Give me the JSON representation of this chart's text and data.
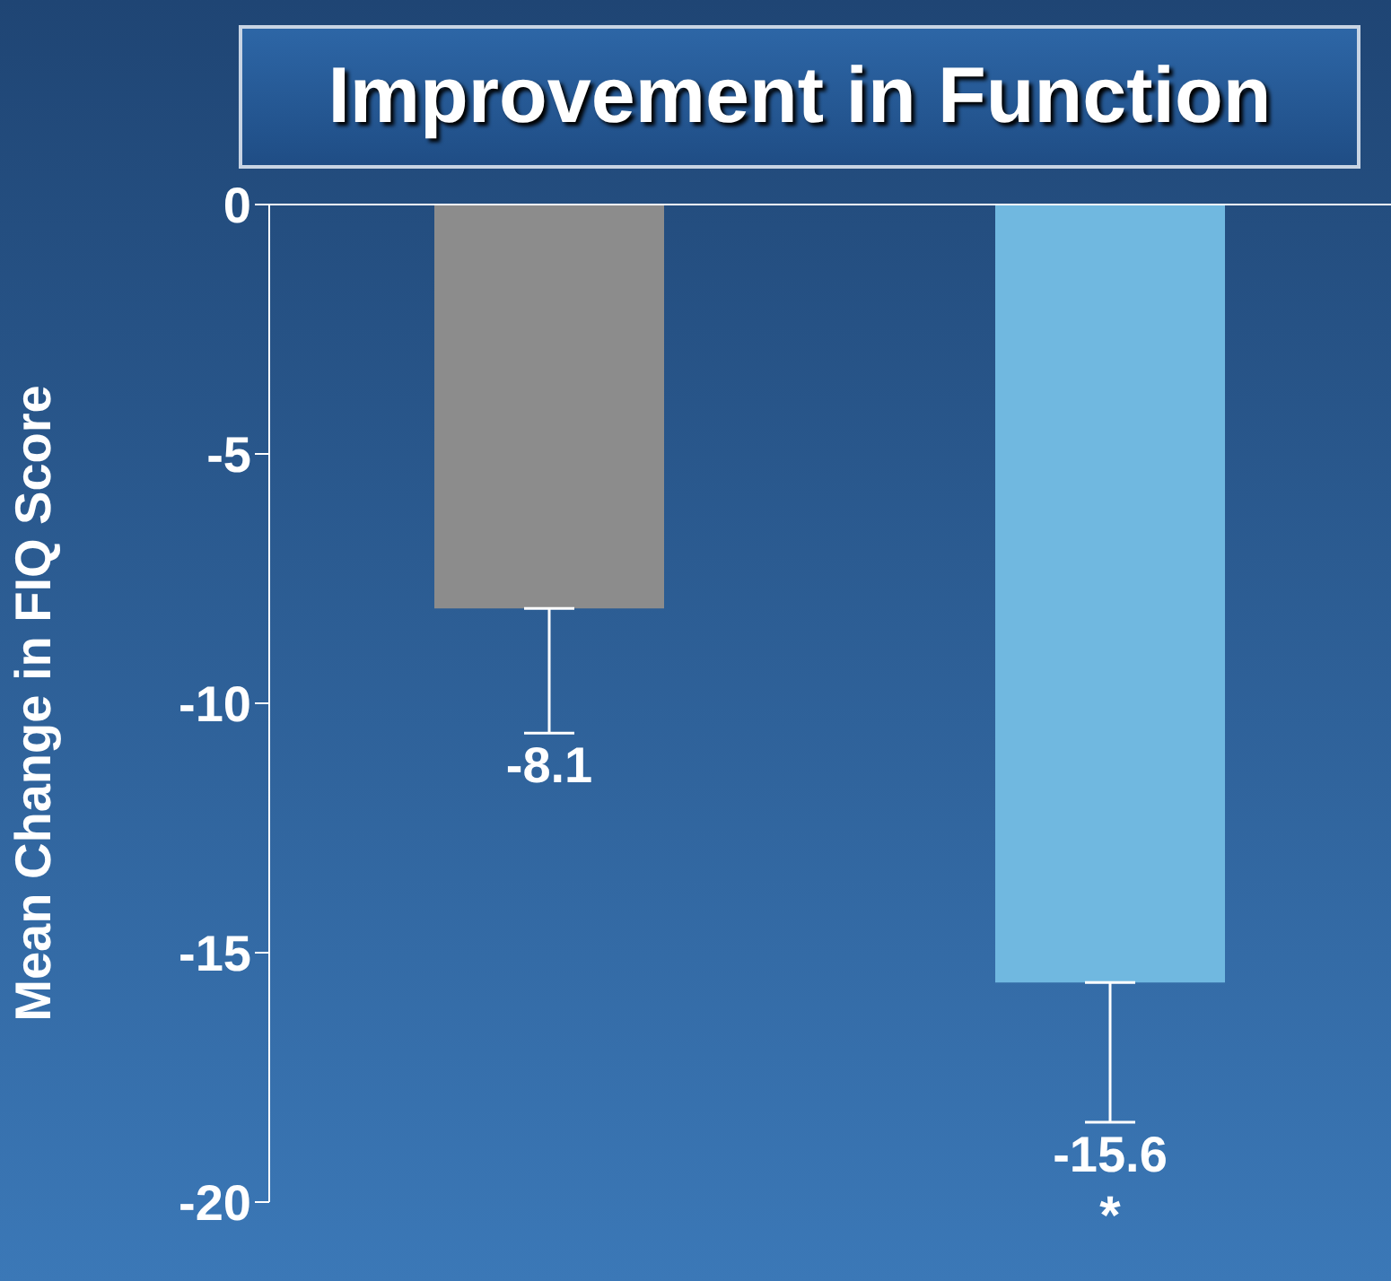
{
  "chart_data": {
    "type": "bar",
    "title": "Improvement in Function",
    "ylabel": "Mean Change in FIQ Score",
    "categories": [
      null,
      null
    ],
    "values": [
      -8.1,
      -15.6
    ],
    "colors": [
      "#8c8c8c",
      "#70b8e0"
    ],
    "errors": [
      [
        -10.6,
        -8.1
      ],
      [
        -18.4,
        -15.6
      ]
    ],
    "data_labels": true,
    "annotations": [
      {
        "text": "*"
      }
    ],
    "ylim": [
      -20,
      0
    ],
    "yticks": [
      0,
      -5,
      -10,
      -15,
      -20
    ],
    "grid": false,
    "legend": false
  }
}
